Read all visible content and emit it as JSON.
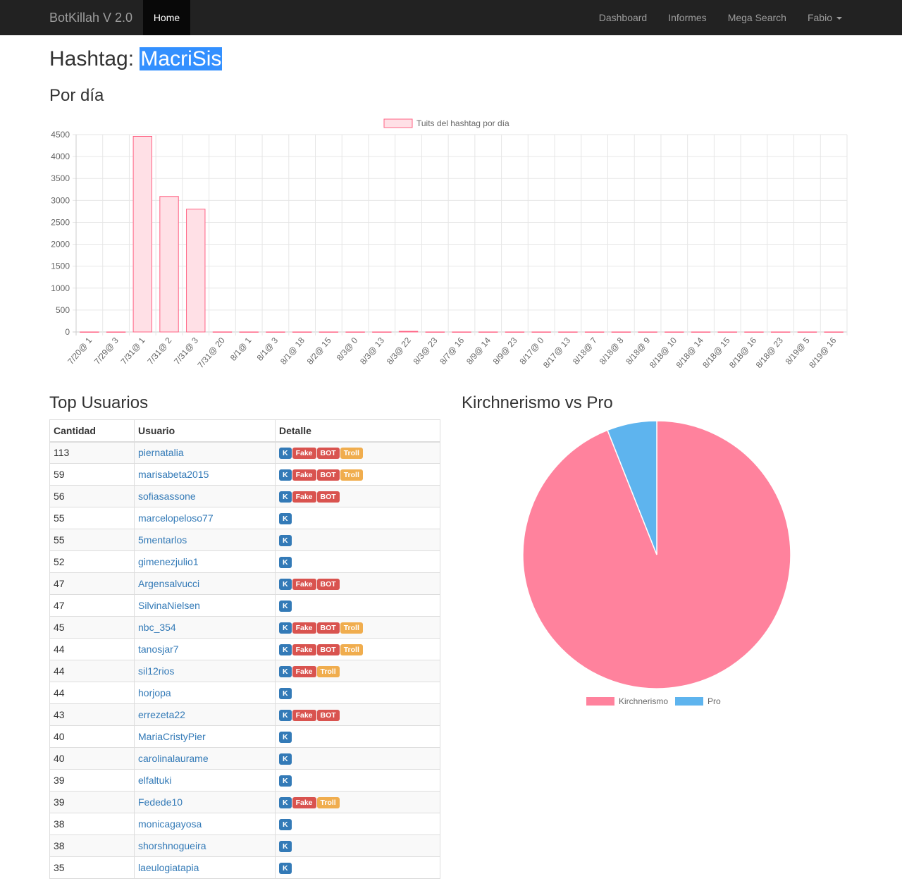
{
  "nav": {
    "brand": "BotKillah V 2.0",
    "home": "Home",
    "links": [
      "Dashboard",
      "Informes",
      "Mega Search",
      "Fabio"
    ]
  },
  "title": {
    "prefix": "Hashtag: ",
    "hashtag": "MacriSis"
  },
  "section_por_dia": "Por día",
  "section_top": "Top Usuarios",
  "section_pie": "Kirchnerismo vs Pro",
  "table": {
    "headers": [
      "Cantidad",
      "Usuario",
      "Detalle"
    ],
    "rows": [
      {
        "count": "113",
        "user": "piernatalia",
        "tags": [
          "K",
          "Fake",
          "BOT",
          "Troll"
        ]
      },
      {
        "count": "59",
        "user": "marisabeta2015",
        "tags": [
          "K",
          "Fake",
          "BOT",
          "Troll"
        ]
      },
      {
        "count": "56",
        "user": "sofiasassone",
        "tags": [
          "K",
          "Fake",
          "BOT"
        ]
      },
      {
        "count": "55",
        "user": "marcelopeloso77",
        "tags": [
          "K"
        ]
      },
      {
        "count": "55",
        "user": "5mentarlos",
        "tags": [
          "K"
        ]
      },
      {
        "count": "52",
        "user": "gimenezjulio1",
        "tags": [
          "K"
        ]
      },
      {
        "count": "47",
        "user": "Argensalvucci",
        "tags": [
          "K",
          "Fake",
          "BOT"
        ]
      },
      {
        "count": "47",
        "user": "SilvinaNielsen",
        "tags": [
          "K"
        ]
      },
      {
        "count": "45",
        "user": "nbc_354",
        "tags": [
          "K",
          "Fake",
          "BOT",
          "Troll"
        ]
      },
      {
        "count": "44",
        "user": "tanosjar7",
        "tags": [
          "K",
          "Fake",
          "BOT",
          "Troll"
        ]
      },
      {
        "count": "44",
        "user": "sil12rios",
        "tags": [
          "K",
          "Fake",
          "Troll"
        ]
      },
      {
        "count": "44",
        "user": "horjopa",
        "tags": [
          "K"
        ]
      },
      {
        "count": "43",
        "user": "errezeta22",
        "tags": [
          "K",
          "Fake",
          "BOT"
        ]
      },
      {
        "count": "40",
        "user": "MariaCristyPier",
        "tags": [
          "K"
        ]
      },
      {
        "count": "40",
        "user": "carolinalaurame",
        "tags": [
          "K"
        ]
      },
      {
        "count": "39",
        "user": "elfaltuki",
        "tags": [
          "K"
        ]
      },
      {
        "count": "39",
        "user": "Fedede10",
        "tags": [
          "K",
          "Fake",
          "Troll"
        ]
      },
      {
        "count": "38",
        "user": "monicagayosa",
        "tags": [
          "K"
        ]
      },
      {
        "count": "38",
        "user": "shorshnogueira",
        "tags": [
          "K"
        ]
      },
      {
        "count": "35",
        "user": "laeulogiatapia",
        "tags": [
          "K"
        ]
      }
    ]
  },
  "chart_data": [
    {
      "type": "bar",
      "legend": "Tuits del hashtag  por día",
      "legend_position": "top",
      "grid": true,
      "ylim": [
        0,
        4500
      ],
      "yticks": [
        0,
        500,
        1000,
        1500,
        2000,
        2500,
        3000,
        3500,
        4000,
        4500
      ],
      "categories": [
        "7/20@ 1",
        "7/29@ 3",
        "7/31@ 1",
        "7/31@ 2",
        "7/31@ 3",
        "7/31@ 20",
        "8/1@ 1",
        "8/1@ 3",
        "8/1@ 18",
        "8/2@ 15",
        "8/3@ 0",
        "8/3@ 13",
        "8/3@ 22",
        "8/3@ 23",
        "8/7@ 16",
        "8/9@ 14",
        "8/9@ 23",
        "8/17@ 0",
        "8/17@ 13",
        "8/18@ 7",
        "8/18@ 8",
        "8/18@ 9",
        "8/18@ 10",
        "8/18@ 14",
        "8/18@ 15",
        "8/18@ 16",
        "8/18@ 23",
        "8/19@ 5",
        "8/19@ 16"
      ],
      "values": [
        1,
        1,
        4460,
        3090,
        2800,
        2,
        1,
        1,
        1,
        1,
        1,
        1,
        15,
        1,
        1,
        1,
        1,
        1,
        1,
        1,
        1,
        1,
        1,
        1,
        1,
        1,
        1,
        1,
        1
      ],
      "colors": {
        "fill": "#ffe0e6",
        "stroke": "#ff6384"
      }
    },
    {
      "type": "pie",
      "labels": [
        "Kirchnerismo",
        "Pro"
      ],
      "values": [
        94,
        6
      ],
      "colors": [
        "#ff829d",
        "#5eb4ee"
      ],
      "legend_position": "bottom"
    }
  ]
}
